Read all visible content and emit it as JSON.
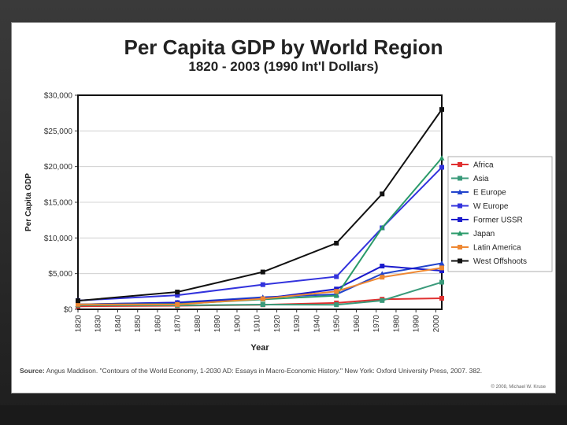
{
  "chart_data": {
    "type": "line",
    "title": "Per Capita GDP by World Region",
    "subtitle": "1820 - 2003 (1990 Int'l Dollars)",
    "xlabel": "Year",
    "ylabel": "Per Capita GDP",
    "xlim": [
      1820,
      2003
    ],
    "ylim": [
      0,
      30000
    ],
    "x_ticks": [
      1820,
      1830,
      1840,
      1850,
      1860,
      1870,
      1880,
      1890,
      1900,
      1910,
      1920,
      1930,
      1940,
      1950,
      1960,
      1970,
      1980,
      1990,
      2000
    ],
    "y_ticks": [
      0,
      5000,
      10000,
      15000,
      20000,
      25000,
      30000
    ],
    "y_tick_labels": [
      "$0",
      "$5,000",
      "$10,000",
      "$15,000",
      "$20,000",
      "$25,000",
      "$30,000"
    ],
    "x": [
      1820,
      1870,
      1913,
      1950,
      1973,
      2003
    ],
    "series": [
      {
        "name": "Africa",
        "color": "#e03030",
        "marker": "square",
        "values": [
          420,
          500,
          640,
          890,
          1410,
          1550
        ]
      },
      {
        "name": "Asia",
        "color": "#3a9a7a",
        "marker": "square",
        "values": [
          580,
          550,
          660,
          640,
          1230,
          3800
        ]
      },
      {
        "name": "E Europe",
        "color": "#2244cc",
        "marker": "triangle",
        "values": [
          680,
          950,
          1700,
          2100,
          4980,
          6450
        ]
      },
      {
        "name": "W Europe",
        "color": "#3333dd",
        "marker": "square",
        "values": [
          1230,
          1970,
          3460,
          4580,
          11420,
          19900
        ]
      },
      {
        "name": "Former USSR",
        "color": "#1a1acc",
        "marker": "square",
        "values": [
          690,
          940,
          1490,
          2840,
          6060,
          5400
        ]
      },
      {
        "name": "Japan",
        "color": "#2a9a6a",
        "marker": "triangle",
        "values": [
          670,
          740,
          1390,
          1920,
          11430,
          21200
        ]
      },
      {
        "name": "Latin America",
        "color": "#ee8833",
        "marker": "square",
        "values": [
          690,
          680,
          1480,
          2510,
          4500,
          5800
        ]
      },
      {
        "name": "West Offshoots",
        "color": "#111111",
        "marker": "square",
        "values": [
          1200,
          2420,
          5230,
          9270,
          16170,
          28000
        ]
      }
    ]
  },
  "source_label": "Source:",
  "source_text": "Angus Maddison. \"Contours of the World Economy, 1-2030 AD: Essays in Macro-Economic History.\" New York: Oxford University Press, 2007. 382.",
  "copyright": "© 2008, Michael W. Kruse"
}
